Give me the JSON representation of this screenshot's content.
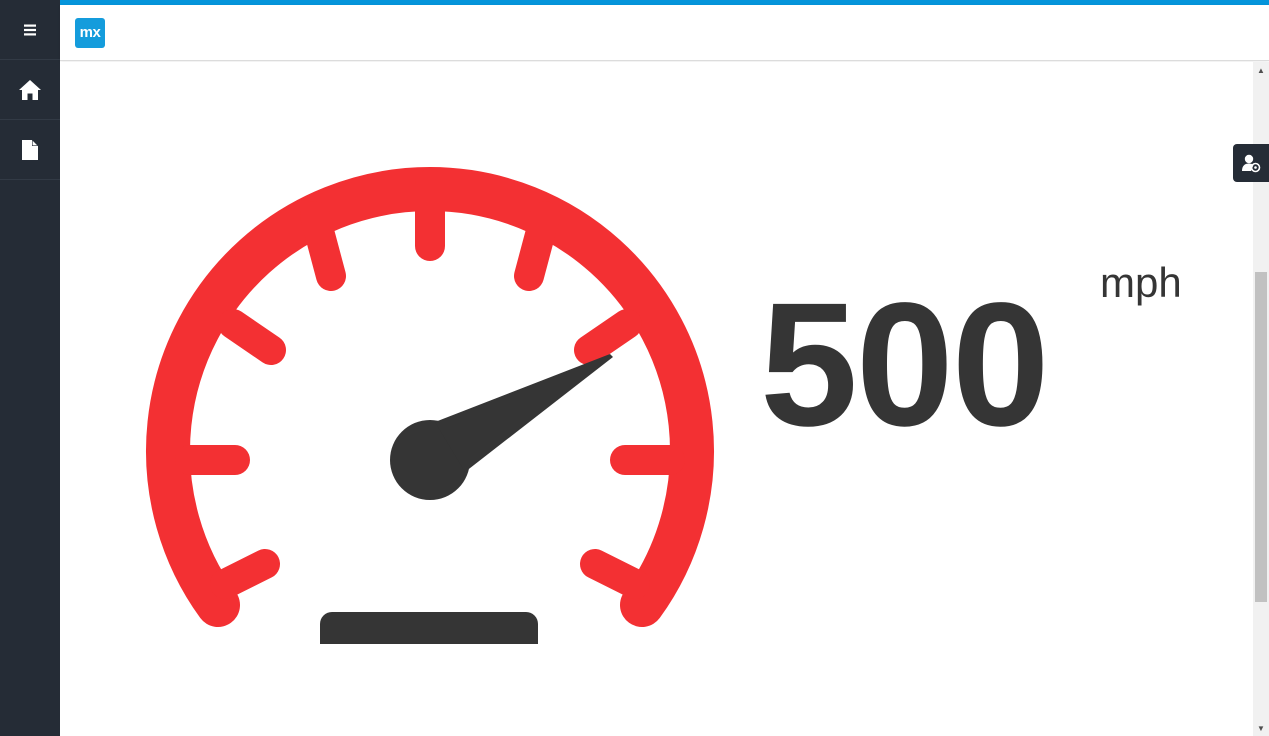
{
  "header": {
    "logo_text": "mx"
  },
  "sidebar": {
    "items": [
      {
        "icon": "hamburger-menu-icon"
      },
      {
        "icon": "home-icon"
      },
      {
        "icon": "file-icon"
      }
    ]
  },
  "speedometer": {
    "value": "500",
    "unit": "mph"
  },
  "colors": {
    "sidebar": "#252c36",
    "accent": "#0595db",
    "gauge_red": "#f33033",
    "text_dark": "#353535"
  }
}
